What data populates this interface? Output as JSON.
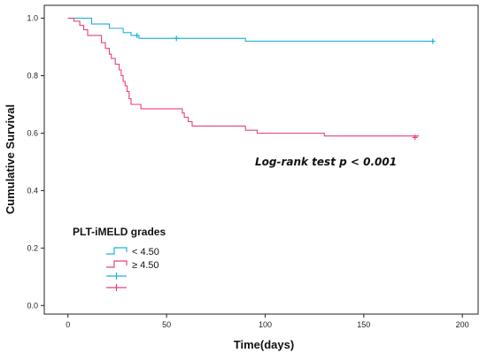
{
  "chart_data": {
    "type": "line",
    "title": "",
    "xlabel": "Time(days)",
    "ylabel": "Cumulative Survival",
    "xlim": [
      -12,
      208
    ],
    "ylim": [
      -0.03,
      1.045
    ],
    "xticks": [
      0,
      50,
      100,
      150,
      200
    ],
    "yticks": [
      0.0,
      0.2,
      0.4,
      0.6,
      0.8,
      1.0
    ],
    "ytick_labels": [
      "0.0",
      "0.2",
      "0.4",
      "0.6",
      "0.8",
      "1.0"
    ],
    "grid": false,
    "annotation": "Log-rank test p < 0.001",
    "legend": {
      "title": "PLT-iMELD grades",
      "placement": "bottom-left",
      "entries": [
        "< 4.50",
        "≥ 4.50",
        "",
        ""
      ]
    },
    "series": [
      {
        "name": "< 4.50",
        "color": "#1ab1dd",
        "steps": [
          [
            0,
            1.0
          ],
          [
            12,
            0.98
          ],
          [
            21,
            0.965
          ],
          [
            28,
            0.95
          ],
          [
            32,
            0.94
          ],
          [
            36,
            0.93
          ],
          [
            90,
            0.92
          ],
          [
            185,
            0.92
          ]
        ],
        "censored": [
          [
            35,
            0.94
          ],
          [
            55,
            0.93
          ],
          [
            185,
            0.92
          ]
        ]
      },
      {
        "name": "≥ 4.50",
        "color": "#e8417c",
        "steps": [
          [
            0,
            1.0
          ],
          [
            3,
            0.99
          ],
          [
            6,
            0.975
          ],
          [
            8,
            0.96
          ],
          [
            10,
            0.94
          ],
          [
            17,
            0.915
          ],
          [
            19,
            0.895
          ],
          [
            21,
            0.875
          ],
          [
            22,
            0.86
          ],
          [
            24,
            0.84
          ],
          [
            26,
            0.82
          ],
          [
            27,
            0.8
          ],
          [
            28,
            0.78
          ],
          [
            29,
            0.765
          ],
          [
            30,
            0.745
          ],
          [
            31,
            0.72
          ],
          [
            32,
            0.7
          ],
          [
            37,
            0.685
          ],
          [
            58,
            0.67
          ],
          [
            59,
            0.655
          ],
          [
            61,
            0.64
          ],
          [
            63,
            0.625
          ],
          [
            90,
            0.61
          ],
          [
            96,
            0.6
          ],
          [
            130,
            0.59
          ],
          [
            178,
            0.59
          ]
        ],
        "censored": [
          [
            176,
            0.585
          ]
        ]
      }
    ]
  }
}
